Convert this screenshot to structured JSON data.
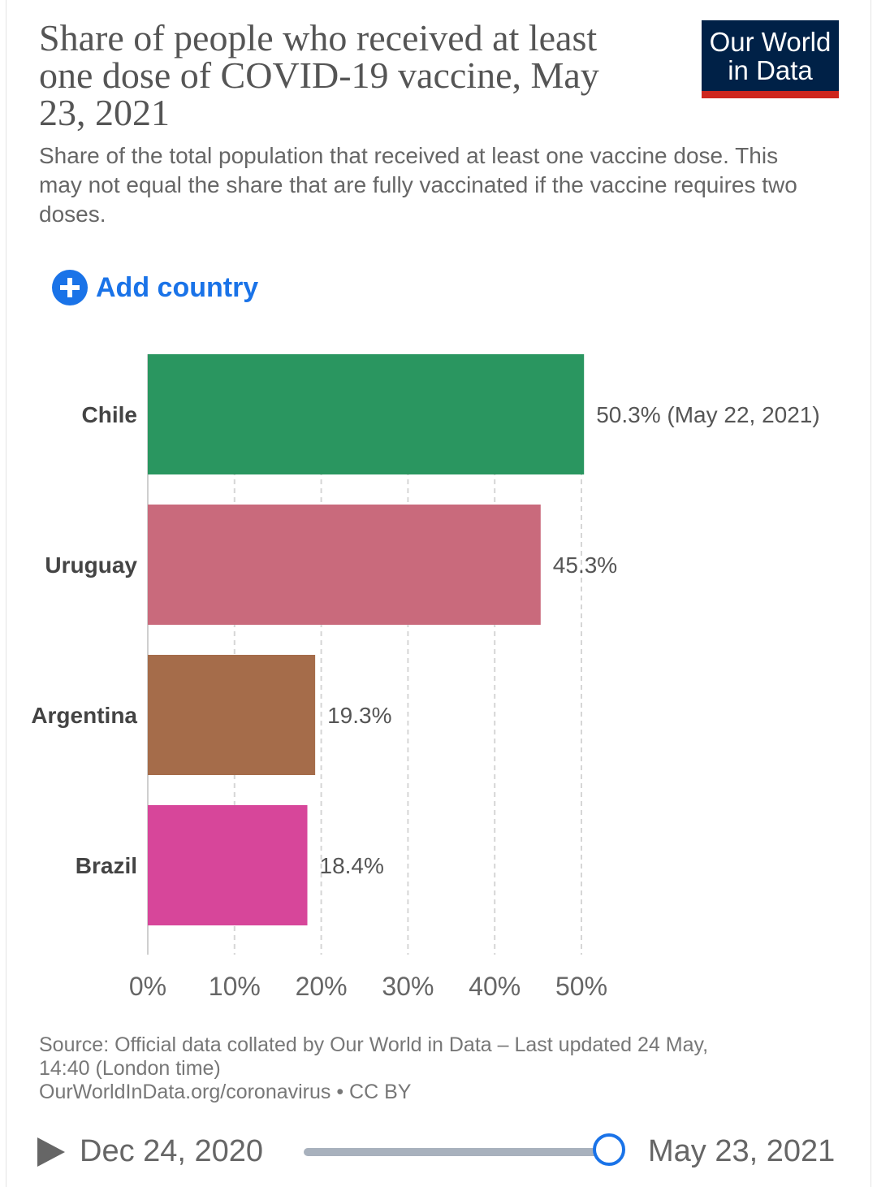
{
  "header": {
    "title": "Share of people who received at least one dose of COVID-19 vaccine, May 23, 2021",
    "subtitle": "Share of the total population that received at least one vaccine dose. This may not equal the share that are fully vaccinated if the vaccine requires two doses.",
    "logo_line1": "Our World",
    "logo_line2": "in Data"
  },
  "controls": {
    "add_country_label": "Add country",
    "add_icon": "plus-circle-icon"
  },
  "chart_data": {
    "type": "bar",
    "orientation": "horizontal",
    "categories": [
      "Chile",
      "Uruguay",
      "Argentina",
      "Brazil"
    ],
    "values": [
      50.3,
      45.3,
      19.3,
      18.4
    ],
    "value_labels": [
      "50.3% (May 22, 2021)",
      "45.3%",
      "19.3%",
      "18.4%"
    ],
    "colors": [
      "#2a9660",
      "#c96a7c",
      "#a56c4a",
      "#d7469a"
    ],
    "xlim": [
      0,
      50
    ],
    "xticks": [
      0,
      10,
      20,
      30,
      40,
      50
    ],
    "xtick_labels": [
      "0%",
      "10%",
      "20%",
      "30%",
      "40%",
      "50%"
    ],
    "grid": true,
    "legend": "none"
  },
  "footer": {
    "source_line1": "Source: Official data collated by Our World in Data – Last updated 24 May,",
    "source_line2": "14:40 (London time)",
    "source_line3": "OurWorldInData.org/coronavirus • CC BY"
  },
  "timeline": {
    "start_date": "Dec 24, 2020",
    "end_date": "May 23, 2021",
    "position_fraction": 1.0,
    "play_icon": "play-icon"
  }
}
